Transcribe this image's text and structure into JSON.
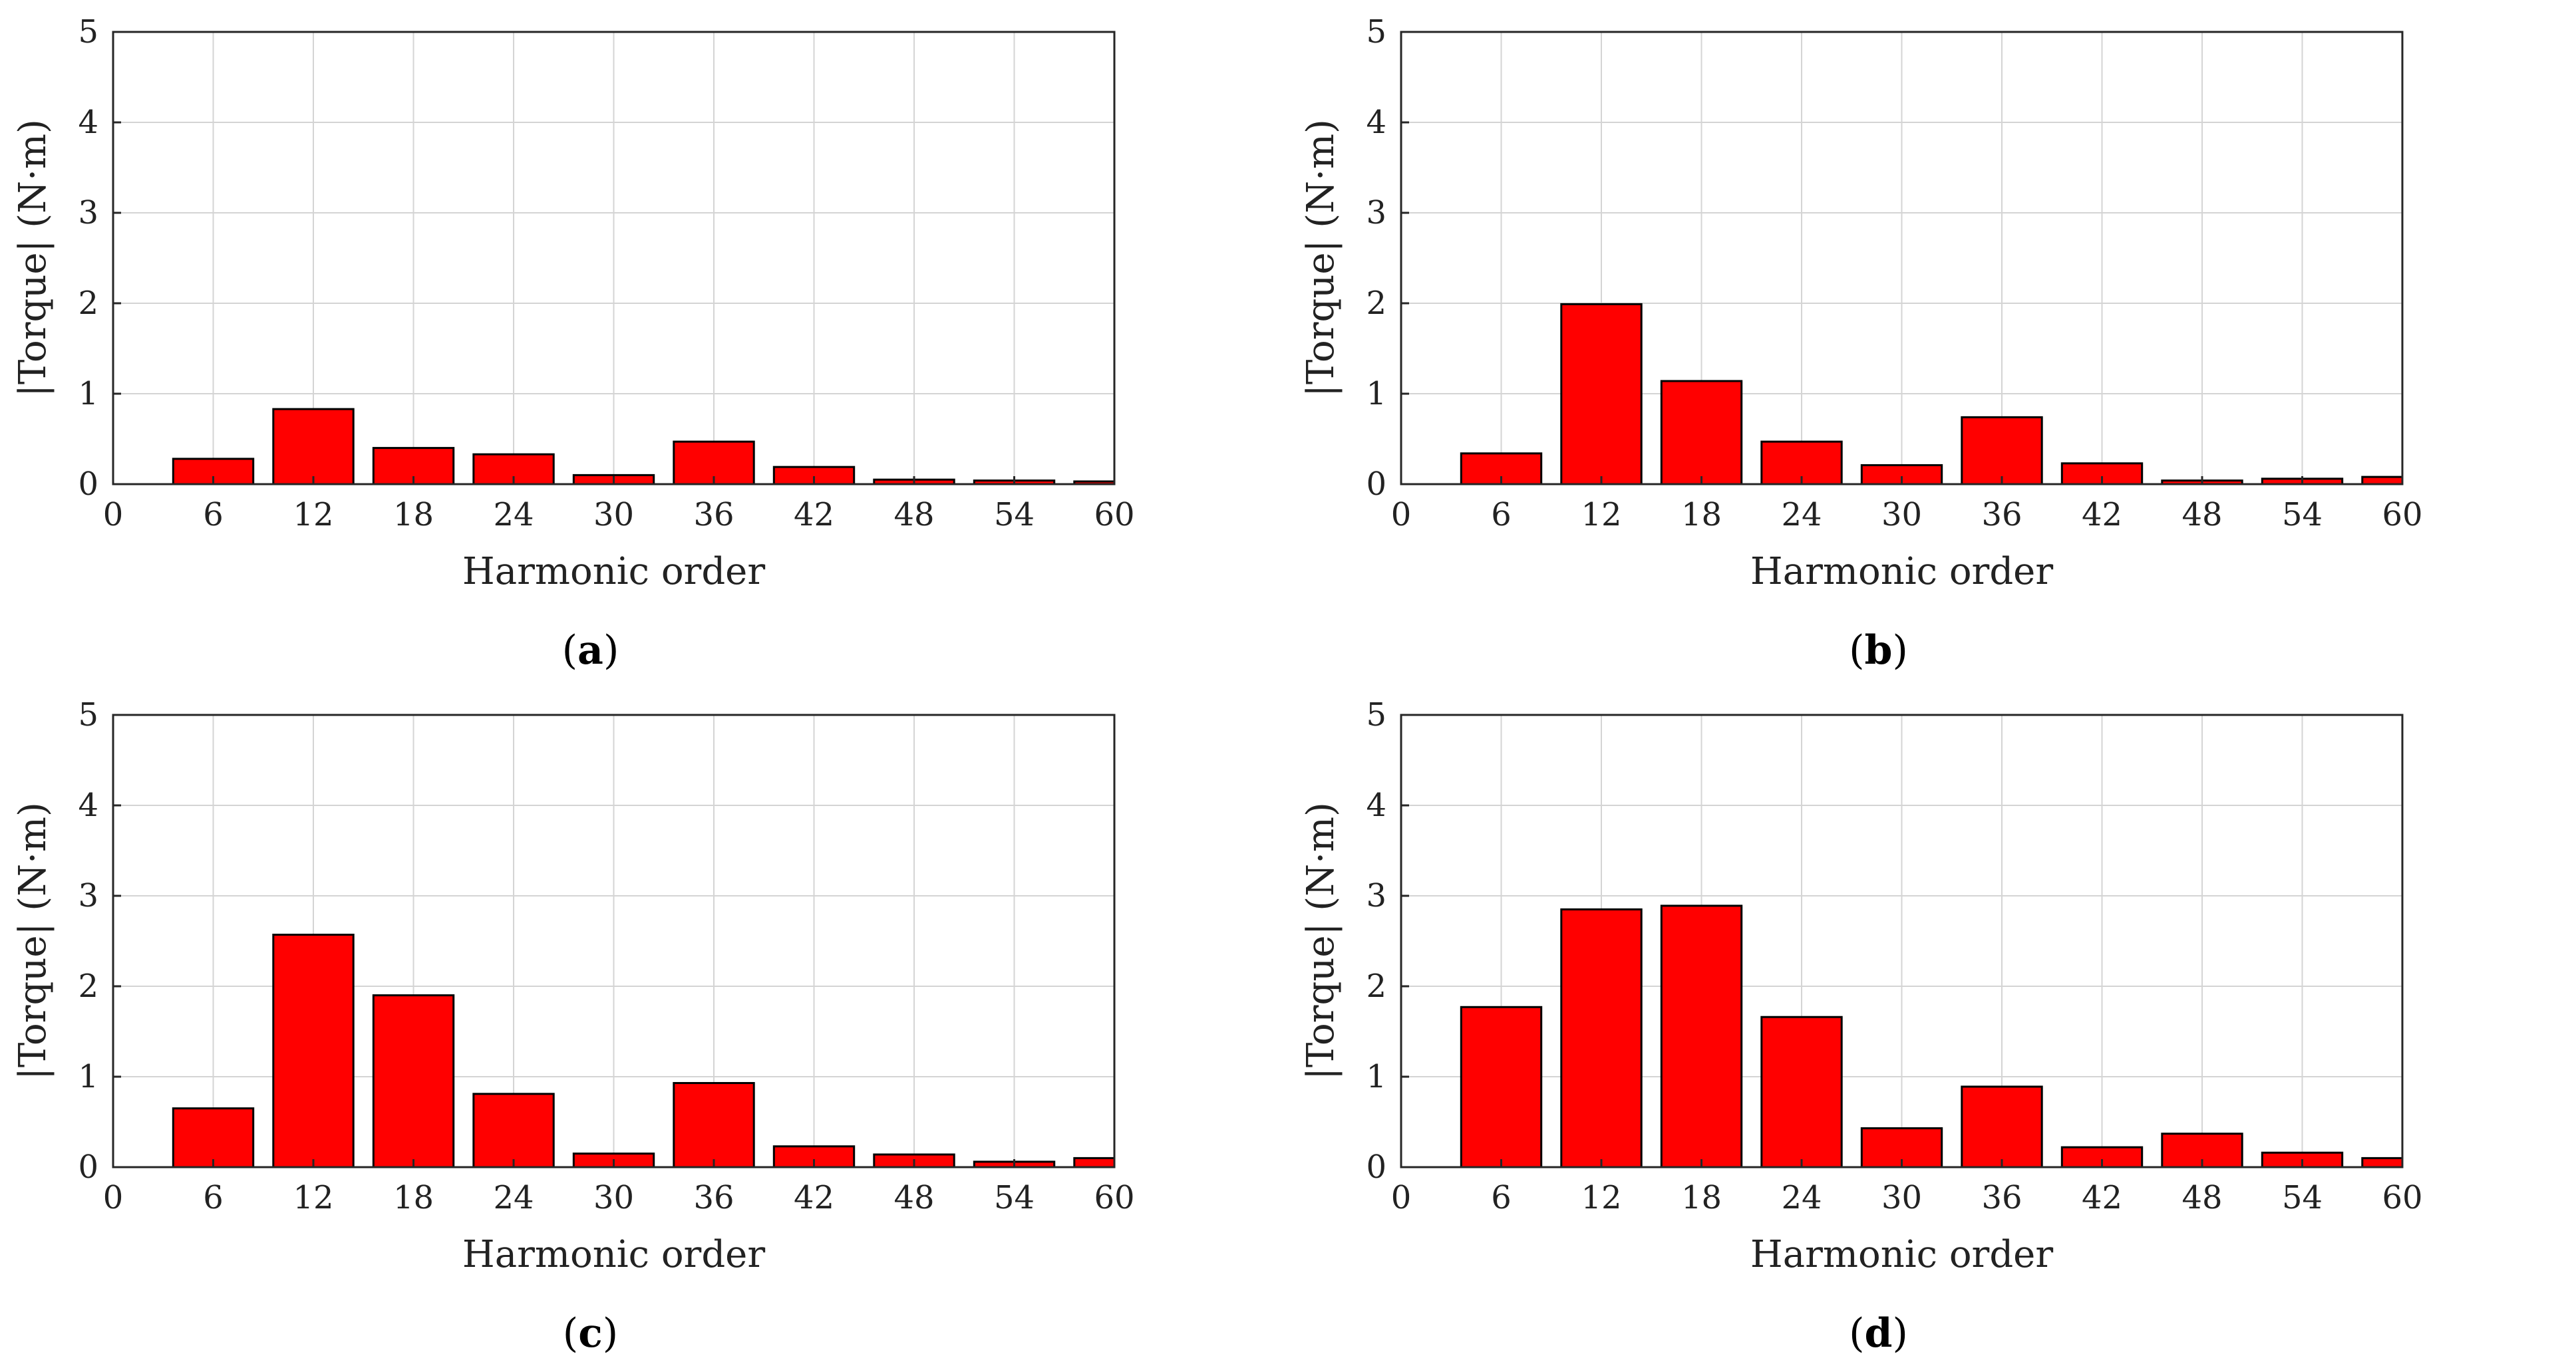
{
  "colors": {
    "bar": "#ff0000",
    "axis": "#262626",
    "grid": "#d4d4d4"
  },
  "chart_data": [
    {
      "type": "bar",
      "caption_letter": "a",
      "xlabel": "Harmonic order",
      "ylabel": "|Torque| (N·m)",
      "xlim": [
        0,
        60
      ],
      "ylim": [
        0,
        5
      ],
      "xticks": [
        0,
        6,
        12,
        18,
        24,
        30,
        36,
        42,
        48,
        54,
        60
      ],
      "yticks": [
        0,
        1,
        2,
        3,
        4,
        5
      ],
      "x": [
        6,
        12,
        18,
        24,
        30,
        36,
        42,
        48,
        54,
        60
      ],
      "values": [
        0.28,
        0.83,
        0.4,
        0.33,
        0.1,
        0.47,
        0.19,
        0.05,
        0.04,
        0.03
      ],
      "grid": true
    },
    {
      "type": "bar",
      "caption_letter": "b",
      "xlabel": "Harmonic order",
      "ylabel": "|Torque| (N·m)",
      "xlim": [
        0,
        60
      ],
      "ylim": [
        0,
        5
      ],
      "xticks": [
        0,
        6,
        12,
        18,
        24,
        30,
        36,
        42,
        48,
        54,
        60
      ],
      "yticks": [
        0,
        1,
        2,
        3,
        4,
        5
      ],
      "x": [
        6,
        12,
        18,
        24,
        30,
        36,
        42,
        48,
        54,
        60
      ],
      "values": [
        0.34,
        1.99,
        1.14,
        0.47,
        0.21,
        0.74,
        0.23,
        0.04,
        0.06,
        0.08
      ],
      "grid": true
    },
    {
      "type": "bar",
      "caption_letter": "c",
      "xlabel": "Harmonic order",
      "ylabel": "|Torque| (N·m)",
      "xlim": [
        0,
        60
      ],
      "ylim": [
        0,
        5
      ],
      "xticks": [
        0,
        6,
        12,
        18,
        24,
        30,
        36,
        42,
        48,
        54,
        60
      ],
      "yticks": [
        0,
        1,
        2,
        3,
        4,
        5
      ],
      "x": [
        6,
        12,
        18,
        24,
        30,
        36,
        42,
        48,
        54,
        60
      ],
      "values": [
        0.65,
        2.57,
        1.9,
        0.81,
        0.15,
        0.93,
        0.23,
        0.14,
        0.06,
        0.1
      ],
      "grid": true
    },
    {
      "type": "bar",
      "caption_letter": "d",
      "xlabel": "Harmonic order",
      "ylabel": "|Torque| (N·m)",
      "xlim": [
        0,
        60
      ],
      "ylim": [
        0,
        5
      ],
      "xticks": [
        0,
        6,
        12,
        18,
        24,
        30,
        36,
        42,
        48,
        54,
        60
      ],
      "yticks": [
        0,
        1,
        2,
        3,
        4,
        5
      ],
      "x": [
        6,
        12,
        18,
        24,
        30,
        36,
        42,
        48,
        54,
        60
      ],
      "values": [
        1.77,
        2.85,
        2.89,
        1.66,
        0.43,
        0.89,
        0.22,
        0.37,
        0.16,
        0.1
      ],
      "grid": true
    }
  ]
}
